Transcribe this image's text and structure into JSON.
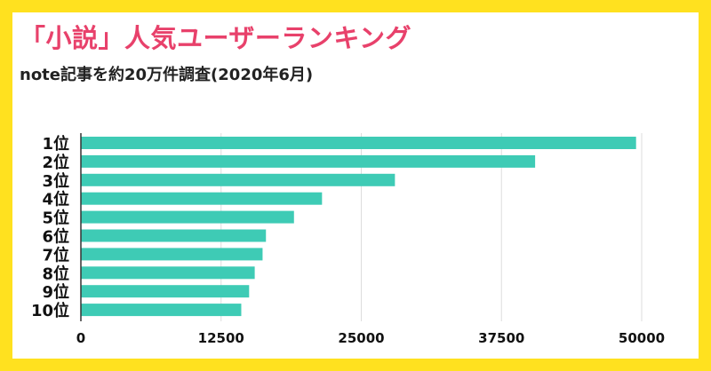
{
  "header": {
    "title": "「小説」人気ユーザーランキング",
    "subtitle": "note記事を約20万件調査(2020年6月)"
  },
  "colors": {
    "frame": "#ffe11f",
    "title": "#e8416b",
    "bar": "#3ecbb5",
    "grid": "#dddddd"
  },
  "chart_data": {
    "type": "bar",
    "orientation": "horizontal",
    "categories": [
      "1位",
      "2位",
      "3位",
      "4位",
      "5位",
      "6位",
      "7位",
      "8位",
      "9位",
      "10位"
    ],
    "values": [
      49500,
      40500,
      28000,
      21500,
      19000,
      16500,
      16200,
      15500,
      15000,
      14300
    ],
    "xticks": [
      0,
      12500,
      25000,
      37500,
      50000
    ],
    "xtick_labels": [
      "0",
      "12500",
      "25000",
      "37500",
      "50000"
    ],
    "xlim": [
      0,
      50000
    ],
    "grid": true,
    "legend": "none"
  }
}
